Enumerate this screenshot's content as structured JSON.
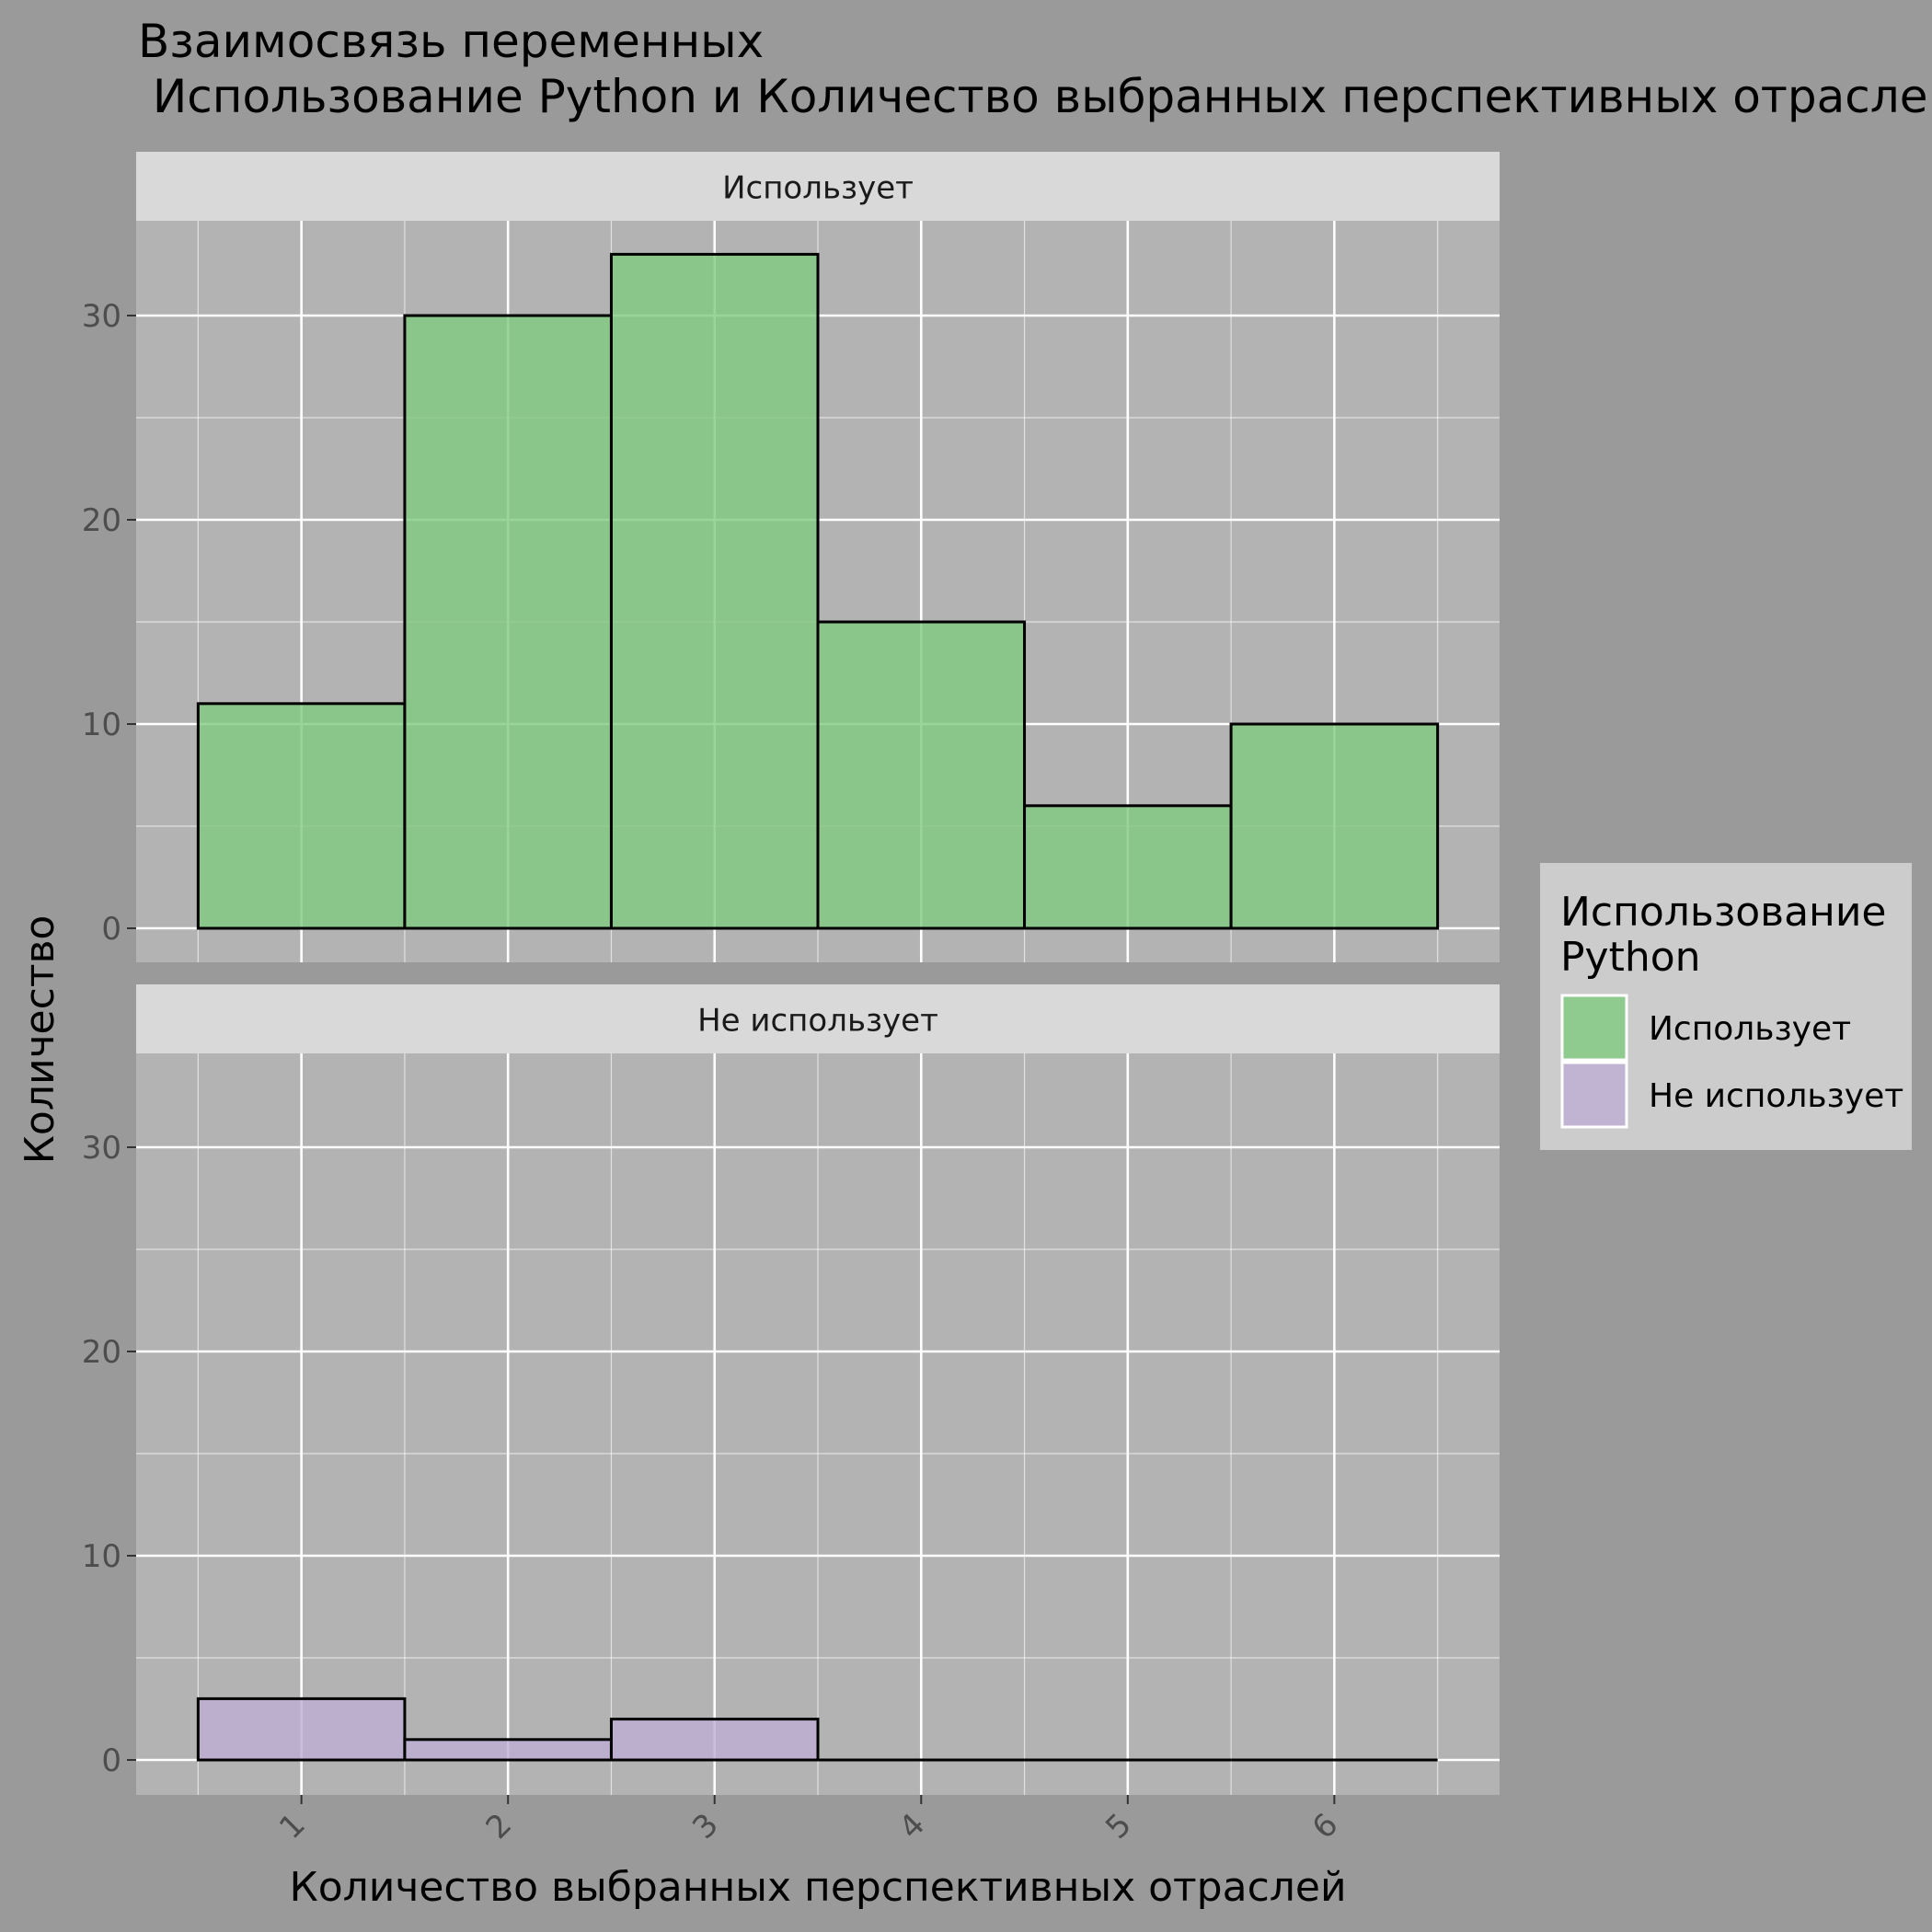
{
  "chart_data": {
    "type": "bar",
    "title_line1": "Взаимосвязь переменных",
    "title_line2": " Использование Python и Количество выбранных перспективных отрасле",
    "xlabel": "Количество выбранных перспективных отраслей",
    "ylabel": "Количество",
    "categories": [
      "1",
      "2",
      "3",
      "4",
      "5",
      "6"
    ],
    "ylim": [
      0,
      35
    ],
    "yticks": [
      "0",
      "10",
      "20",
      "30"
    ],
    "facets": [
      {
        "strip": "Использует",
        "series": "Использует",
        "values": [
          11,
          30,
          33,
          15,
          6,
          10
        ]
      },
      {
        "strip": "Не использует",
        "series": "Не использует",
        "values": [
          3,
          1,
          2,
          0,
          0,
          0
        ]
      }
    ],
    "legend": {
      "title_line1": "Использование",
      "title_line2": "Python",
      "position": "right",
      "items": [
        {
          "label": "Использует",
          "color": "#7fc97f"
        },
        {
          "label": "Не использует",
          "color": "#beaed4"
        }
      ]
    },
    "grid": true,
    "colors": {
      "background": "#9a9a9a",
      "panel": "#b3b3b3",
      "strip": "#d9d9d9",
      "grid": "#ffffff",
      "bar_outline": "#000000"
    }
  }
}
